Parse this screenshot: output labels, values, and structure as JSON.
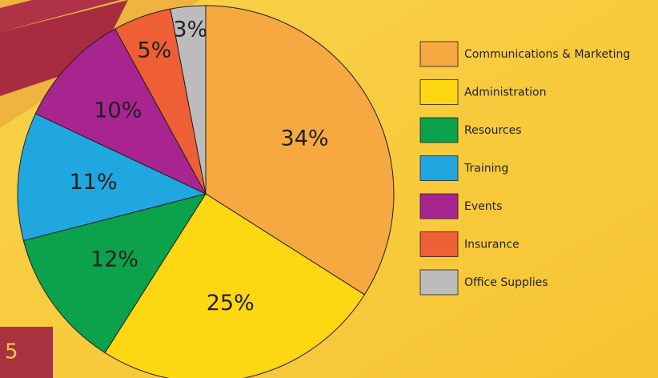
{
  "chart_data": {
    "type": "pie",
    "categories": [
      "Communications & Marketing",
      "Administration",
      "Resources",
      "Training",
      "Events",
      "Insurance",
      "Office Supplies"
    ],
    "values": [
      34,
      25,
      12,
      11,
      10,
      5,
      3
    ],
    "value_labels": [
      "34%",
      "25%",
      "12%",
      "11%",
      "10%",
      "5%",
      "3%"
    ],
    "colors": [
      "#f5a940",
      "#fdd712",
      "#0ca14b",
      "#20a7df",
      "#a8258f",
      "#ee5f35",
      "#bcbcbc"
    ],
    "legend": "right"
  },
  "footer_label": "5"
}
